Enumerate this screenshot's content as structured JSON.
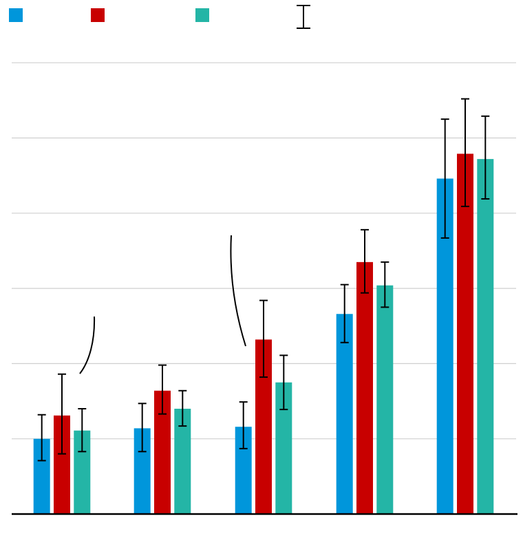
{
  "chart_data": {
    "type": "bar",
    "title": "",
    "xlabel": "",
    "ylabel": "",
    "categories": [
      "",
      "",
      "",
      "",
      ""
    ],
    "ylim": [
      0,
      6
    ],
    "grid": true,
    "legend": "top-left",
    "series": [
      {
        "color": "#0096db",
        "values": [
          1.0,
          1.14,
          1.16,
          2.66,
          4.46
        ],
        "err_low": [
          0.29,
          0.31,
          0.29,
          0.38,
          0.79
        ],
        "err_high": [
          0.32,
          0.33,
          0.33,
          0.39,
          0.79
        ]
      },
      {
        "color": "#c80000",
        "values": [
          1.31,
          1.64,
          2.32,
          3.35,
          4.79
        ],
        "err_low": [
          0.51,
          0.31,
          0.5,
          0.41,
          0.7
        ],
        "err_high": [
          0.55,
          0.34,
          0.52,
          0.43,
          0.73
        ]
      },
      {
        "color": "#24b5a6",
        "values": [
          1.11,
          1.4,
          1.75,
          3.04,
          4.72
        ],
        "err_low": [
          0.28,
          0.23,
          0.36,
          0.29,
          0.53
        ],
        "err_high": [
          0.29,
          0.24,
          0.36,
          0.31,
          0.57
        ]
      }
    ],
    "error_bar_legend": true
  }
}
